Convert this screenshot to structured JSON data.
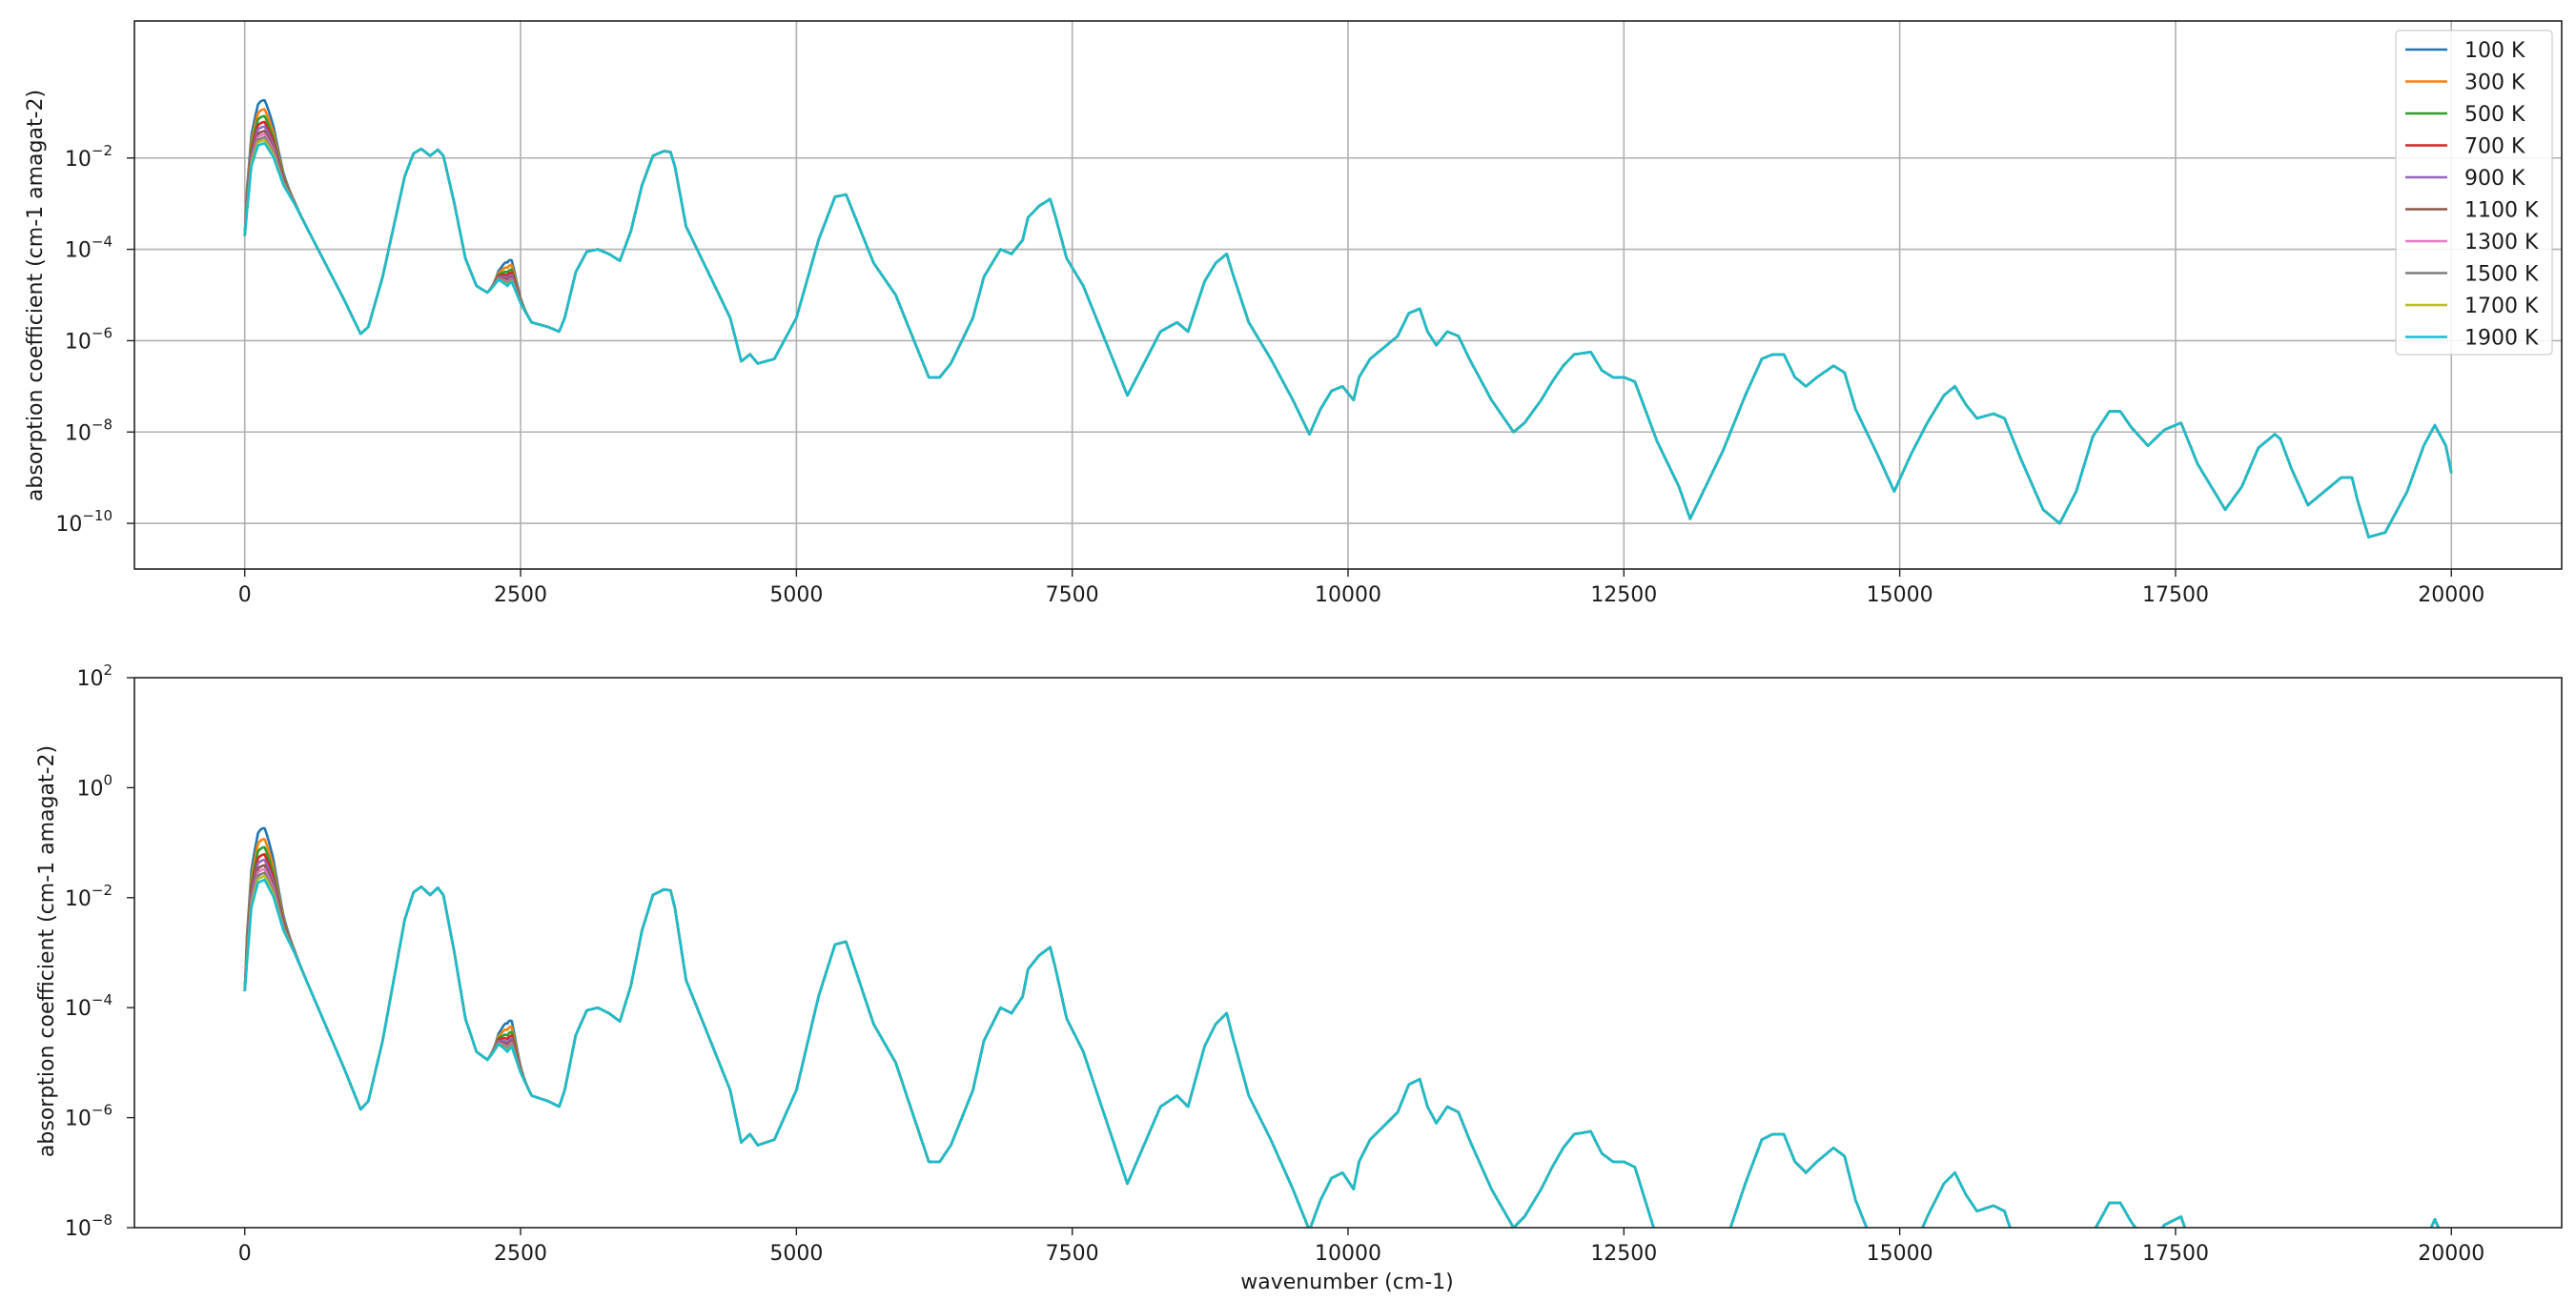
{
  "chart_data": [
    {
      "type": "line",
      "title": "",
      "xlabel": "",
      "ylabel": "absorption coefficient (cm-1 amagat-2)",
      "xlim": [
        -1000,
        21000
      ],
      "ylim": [
        1e-11,
        10.0
      ],
      "yscale": "log",
      "grid": true,
      "legend_loc": "upper right",
      "x_ticks": [
        0,
        2500,
        5000,
        7500,
        10000,
        12500,
        15000,
        17500,
        20000
      ],
      "x_tick_labels": [
        "0",
        "2500",
        "5000",
        "7500",
        "10000",
        "12500",
        "15000",
        "17500",
        "20000"
      ],
      "y_ticks": [
        1e-10,
        1e-08,
        1e-06,
        0.0001,
        0.01
      ],
      "y_tick_labels": [
        {
          "base": "10",
          "exp": "−10"
        },
        {
          "base": "10",
          "exp": "−8"
        },
        {
          "base": "10",
          "exp": "−6"
        },
        {
          "base": "10",
          "exp": "−4"
        },
        {
          "base": "10",
          "exp": "−2"
        }
      ],
      "series": [
        {
          "name": "100 K",
          "color": "#1f77b4"
        },
        {
          "name": "300 K",
          "color": "#ff7f0e"
        },
        {
          "name": "500 K",
          "color": "#2ca02c"
        },
        {
          "name": "700 K",
          "color": "#d62728"
        },
        {
          "name": "900 K",
          "color": "#9467bd"
        },
        {
          "name": "1100 K",
          "color": "#8c564b"
        },
        {
          "name": "1300 K",
          "color": "#e377c2"
        },
        {
          "name": "1500 K",
          "color": "#7f7f7f"
        },
        {
          "name": "1700 K",
          "color": "#bcbd22"
        },
        {
          "name": "1900 K",
          "color": "#17becf"
        }
      ]
    },
    {
      "type": "line",
      "title": "",
      "xlabel": "wavenumber (cm-1)",
      "ylabel": "absorption coefficient (cm-1 amagat-2)",
      "xlim": [
        -1000,
        21000
      ],
      "ylim": [
        1e-08,
        100.0
      ],
      "yscale": "log",
      "grid": false,
      "x_ticks": [
        0,
        2500,
        5000,
        7500,
        10000,
        12500,
        15000,
        17500,
        20000
      ],
      "x_tick_labels": [
        "0",
        "2500",
        "5000",
        "7500",
        "10000",
        "12500",
        "15000",
        "17500",
        "20000"
      ],
      "y_ticks": [
        1e-08,
        1e-06,
        0.0001,
        0.01,
        1.0,
        100.0
      ],
      "y_tick_labels": [
        {
          "base": "10",
          "exp": "−8"
        },
        {
          "base": "10",
          "exp": "−6"
        },
        {
          "base": "10",
          "exp": "−4"
        },
        {
          "base": "10",
          "exp": "−2"
        },
        {
          "base": "10",
          "exp": "0"
        },
        {
          "base": "10",
          "exp": "2"
        }
      ],
      "series": [
        {
          "name": "100 K",
          "color": "#1f77b4"
        },
        {
          "name": "300 K",
          "color": "#ff7f0e"
        },
        {
          "name": "500 K",
          "color": "#2ca02c"
        },
        {
          "name": "700 K",
          "color": "#d62728"
        },
        {
          "name": "900 K",
          "color": "#9467bd"
        },
        {
          "name": "1100 K",
          "color": "#8c564b"
        },
        {
          "name": "1300 K",
          "color": "#e377c2"
        },
        {
          "name": "1500 K",
          "color": "#7f7f7f"
        },
        {
          "name": "1700 K",
          "color": "#bcbd22"
        },
        {
          "name": "1900 K",
          "color": "#17becf"
        }
      ]
    }
  ],
  "spectrum": {
    "common_curve_log10": [
      [
        0,
        -3.7
      ],
      [
        60,
        -2.2
      ],
      [
        120,
        -1.75
      ],
      [
        180,
        -1.7
      ],
      [
        260,
        -2.0
      ],
      [
        350,
        -2.6
      ],
      [
        450,
        -3.0
      ],
      [
        600,
        -3.7
      ],
      [
        750,
        -4.4
      ],
      [
        900,
        -5.1
      ],
      [
        1050,
        -5.85
      ],
      [
        1120,
        -5.7
      ],
      [
        1250,
        -4.6
      ],
      [
        1350,
        -3.5
      ],
      [
        1450,
        -2.4
      ],
      [
        1530,
        -1.9
      ],
      [
        1600,
        -1.8
      ],
      [
        1680,
        -1.95
      ],
      [
        1750,
        -1.82
      ],
      [
        1800,
        -1.95
      ],
      [
        1900,
        -3.0
      ],
      [
        2000,
        -4.2
      ],
      [
        2100,
        -4.8
      ],
      [
        2200,
        -4.95
      ],
      [
        2300,
        -4.7
      ],
      [
        2380,
        -4.9
      ],
      [
        2420,
        -4.8
      ],
      [
        2500,
        -5.2
      ],
      [
        2600,
        -5.6
      ],
      [
        2750,
        -5.7
      ],
      [
        2850,
        -5.8
      ],
      [
        2900,
        -5.5
      ],
      [
        3000,
        -4.5
      ],
      [
        3100,
        -4.05
      ],
      [
        3200,
        -4.0
      ],
      [
        3300,
        -4.1
      ],
      [
        3400,
        -4.25
      ],
      [
        3500,
        -3.6
      ],
      [
        3600,
        -2.6
      ],
      [
        3700,
        -1.95
      ],
      [
        3800,
        -1.85
      ],
      [
        3860,
        -1.87
      ],
      [
        3900,
        -2.2
      ],
      [
        4000,
        -3.5
      ],
      [
        4200,
        -4.5
      ],
      [
        4400,
        -5.5
      ],
      [
        4500,
        -6.45
      ],
      [
        4580,
        -6.3
      ],
      [
        4650,
        -6.5
      ],
      [
        4800,
        -6.4
      ],
      [
        5000,
        -5.5
      ],
      [
        5200,
        -3.8
      ],
      [
        5350,
        -2.85
      ],
      [
        5450,
        -2.8
      ],
      [
        5550,
        -3.4
      ],
      [
        5700,
        -4.3
      ],
      [
        5900,
        -5.0
      ],
      [
        6100,
        -6.2
      ],
      [
        6200,
        -6.8
      ],
      [
        6300,
        -6.8
      ],
      [
        6400,
        -6.5
      ],
      [
        6600,
        -5.5
      ],
      [
        6700,
        -4.6
      ],
      [
        6850,
        -4.0
      ],
      [
        6950,
        -4.1
      ],
      [
        7050,
        -3.8
      ],
      [
        7100,
        -3.3
      ],
      [
        7200,
        -3.05
      ],
      [
        7300,
        -2.9
      ],
      [
        7350,
        -3.3
      ],
      [
        7450,
        -4.2
      ],
      [
        7600,
        -4.8
      ],
      [
        7800,
        -6.0
      ],
      [
        8000,
        -7.2
      ],
      [
        8150,
        -6.5
      ],
      [
        8300,
        -5.8
      ],
      [
        8450,
        -5.6
      ],
      [
        8550,
        -5.8
      ],
      [
        8700,
        -4.7
      ],
      [
        8800,
        -4.3
      ],
      [
        8900,
        -4.1
      ],
      [
        8950,
        -4.5
      ],
      [
        9100,
        -5.6
      ],
      [
        9300,
        -6.4
      ],
      [
        9500,
        -7.3
      ],
      [
        9650,
        -8.05
      ],
      [
        9750,
        -7.5
      ],
      [
        9850,
        -7.1
      ],
      [
        9950,
        -7.0
      ],
      [
        10050,
        -7.3
      ],
      [
        10100,
        -6.8
      ],
      [
        10200,
        -6.4
      ],
      [
        10350,
        -6.1
      ],
      [
        10450,
        -5.9
      ],
      [
        10550,
        -5.4
      ],
      [
        10650,
        -5.3
      ],
      [
        10720,
        -5.8
      ],
      [
        10800,
        -6.1
      ],
      [
        10900,
        -5.8
      ],
      [
        11000,
        -5.9
      ],
      [
        11100,
        -6.4
      ],
      [
        11300,
        -7.3
      ],
      [
        11500,
        -8.0
      ],
      [
        11600,
        -7.8
      ],
      [
        11750,
        -7.3
      ],
      [
        11850,
        -6.9
      ],
      [
        11950,
        -6.55
      ],
      [
        12050,
        -6.3
      ],
      [
        12200,
        -6.25
      ],
      [
        12300,
        -6.65
      ],
      [
        12400,
        -6.8
      ],
      [
        12500,
        -6.8
      ],
      [
        12600,
        -6.9
      ],
      [
        12800,
        -8.2
      ],
      [
        13000,
        -9.2
      ],
      [
        13100,
        -9.9
      ],
      [
        13200,
        -9.4
      ],
      [
        13400,
        -8.4
      ],
      [
        13600,
        -7.2
      ],
      [
        13750,
        -6.4
      ],
      [
        13850,
        -6.3
      ],
      [
        13950,
        -6.3
      ],
      [
        14050,
        -6.8
      ],
      [
        14150,
        -7.0
      ],
      [
        14250,
        -6.8
      ],
      [
        14400,
        -6.55
      ],
      [
        14500,
        -6.7
      ],
      [
        14600,
        -7.5
      ],
      [
        14800,
        -8.5
      ],
      [
        14950,
        -9.3
      ],
      [
        15100,
        -8.5
      ],
      [
        15250,
        -7.8
      ],
      [
        15400,
        -7.2
      ],
      [
        15500,
        -7.0
      ],
      [
        15600,
        -7.4
      ],
      [
        15700,
        -7.7
      ],
      [
        15850,
        -7.6
      ],
      [
        15950,
        -7.7
      ],
      [
        16100,
        -8.6
      ],
      [
        16300,
        -9.7
      ],
      [
        16450,
        -10.0
      ],
      [
        16600,
        -9.3
      ],
      [
        16750,
        -8.1
      ],
      [
        16900,
        -7.55
      ],
      [
        17000,
        -7.55
      ],
      [
        17100,
        -7.9
      ],
      [
        17250,
        -8.3
      ],
      [
        17400,
        -7.95
      ],
      [
        17550,
        -7.8
      ],
      [
        17700,
        -8.7
      ],
      [
        17850,
        -9.3
      ],
      [
        17950,
        -9.7
      ],
      [
        18100,
        -9.2
      ],
      [
        18250,
        -8.35
      ],
      [
        18400,
        -8.05
      ],
      [
        18450,
        -8.15
      ],
      [
        18550,
        -8.8
      ],
      [
        18700,
        -9.6
      ],
      [
        18850,
        -9.3
      ],
      [
        19000,
        -9.0
      ],
      [
        19100,
        -9.0
      ],
      [
        19150,
        -9.5
      ],
      [
        19250,
        -10.3
      ],
      [
        19400,
        -10.2
      ],
      [
        19600,
        -9.3
      ],
      [
        19750,
        -8.3
      ],
      [
        19850,
        -7.85
      ],
      [
        19950,
        -8.3
      ],
      [
        20000,
        -8.9
      ]
    ],
    "low_band_peaks_log10": [
      -0.75,
      -0.95,
      -1.1,
      -1.23,
      -1.33,
      -1.43,
      -1.5,
      -1.57,
      -1.63,
      -1.7
    ],
    "mid_band_peaks_log10": [
      -4.28,
      -4.4,
      -4.5,
      -4.57,
      -4.63,
      -4.68,
      -4.72,
      -4.75,
      -4.78,
      -4.8
    ]
  }
}
